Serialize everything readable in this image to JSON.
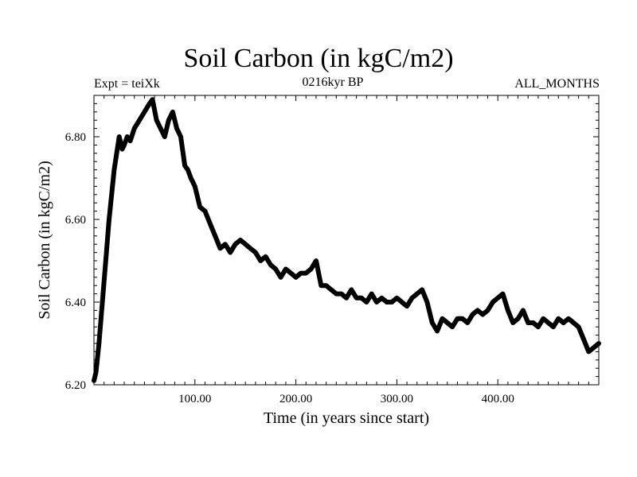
{
  "chart_data": {
    "type": "line",
    "title": "Soil Carbon (in kgC/m2)",
    "subtitle_left": "Expt = teiXk",
    "subtitle_center": "0216kyr BP",
    "subtitle_right": "ALL_MONTHS",
    "xlabel": "Time (in years since start)",
    "ylabel": "Soil Carbon (in kgC/m2)",
    "xlim": [
      0,
      500
    ],
    "ylim": [
      6.2,
      6.9
    ],
    "xticks": [
      100,
      200,
      300,
      400
    ],
    "xtick_labels": [
      "100.00",
      "200.00",
      "300.00",
      "400.00"
    ],
    "yticks": [
      6.2,
      6.4,
      6.6,
      6.8
    ],
    "ytick_labels": [
      "6.20",
      "6.40",
      "6.60",
      "6.80"
    ],
    "grid": false,
    "line_color": "#000000",
    "series": [
      {
        "x": [
          0,
          2,
          5,
          10,
          15,
          20,
          25,
          28,
          30,
          33,
          36,
          40,
          45,
          50,
          55,
          58,
          62,
          66,
          70,
          74,
          78,
          82,
          86,
          90,
          93,
          96,
          100,
          105,
          110,
          115,
          120,
          125,
          130,
          135,
          140,
          145,
          150,
          155,
          160,
          165,
          170,
          175,
          180,
          185,
          190,
          195,
          200,
          205,
          210,
          215,
          220,
          225,
          230,
          235,
          240,
          245,
          250,
          255,
          260,
          265,
          270,
          275,
          280,
          285,
          290,
          295,
          300,
          305,
          310,
          315,
          320,
          325,
          330,
          335,
          340,
          345,
          350,
          355,
          360,
          365,
          370,
          375,
          380,
          385,
          390,
          395,
          400,
          405,
          410,
          415,
          420,
          425,
          430,
          435,
          440,
          445,
          450,
          455,
          460,
          465,
          470,
          475,
          480,
          485,
          490,
          495,
          500
        ],
        "y": [
          6.21,
          6.23,
          6.3,
          6.45,
          6.6,
          6.72,
          6.8,
          6.77,
          6.78,
          6.8,
          6.79,
          6.82,
          6.84,
          6.86,
          6.88,
          6.89,
          6.84,
          6.82,
          6.8,
          6.84,
          6.86,
          6.82,
          6.8,
          6.73,
          6.72,
          6.7,
          6.68,
          6.63,
          6.62,
          6.59,
          6.56,
          6.53,
          6.54,
          6.52,
          6.54,
          6.55,
          6.54,
          6.53,
          6.52,
          6.5,
          6.51,
          6.49,
          6.48,
          6.46,
          6.48,
          6.47,
          6.46,
          6.47,
          6.47,
          6.48,
          6.5,
          6.44,
          6.44,
          6.43,
          6.42,
          6.42,
          6.41,
          6.43,
          6.41,
          6.41,
          6.4,
          6.42,
          6.4,
          6.41,
          6.4,
          6.4,
          6.41,
          6.4,
          6.39,
          6.41,
          6.42,
          6.43,
          6.4,
          6.35,
          6.33,
          6.36,
          6.35,
          6.34,
          6.36,
          6.36,
          6.35,
          6.37,
          6.38,
          6.37,
          6.38,
          6.4,
          6.41,
          6.42,
          6.38,
          6.35,
          6.36,
          6.38,
          6.35,
          6.35,
          6.34,
          6.36,
          6.35,
          6.34,
          6.36,
          6.35,
          6.36,
          6.35,
          6.34,
          6.31,
          6.28,
          6.29,
          6.3
        ]
      }
    ]
  }
}
